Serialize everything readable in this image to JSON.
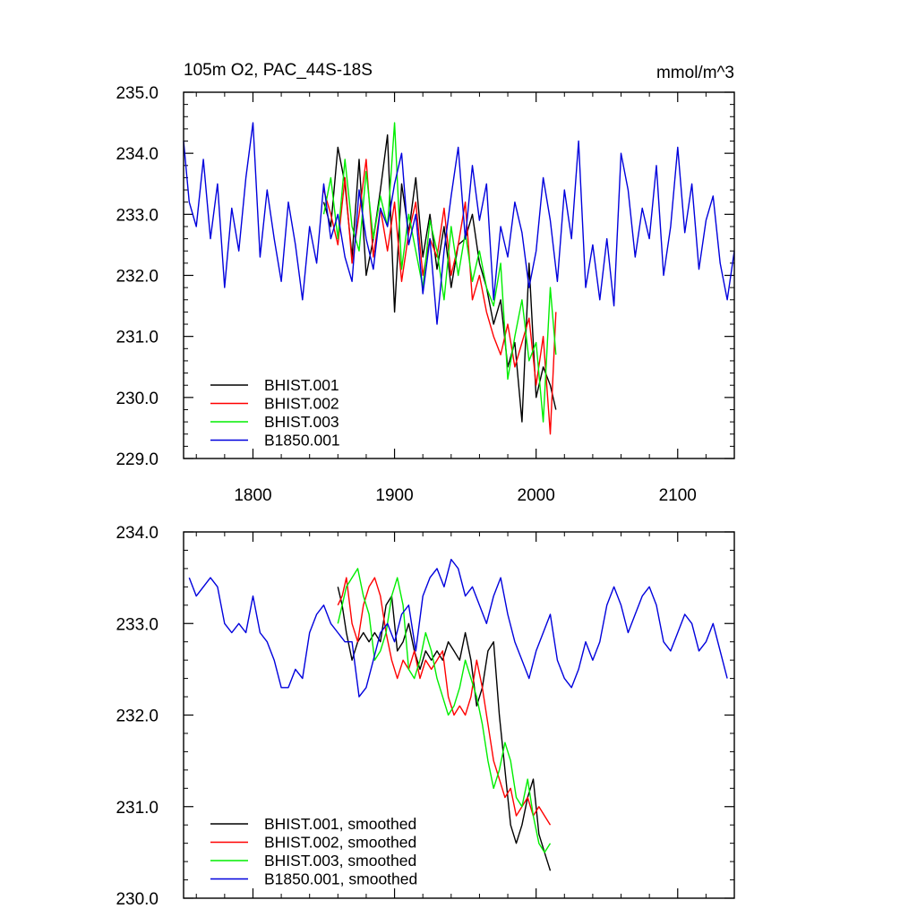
{
  "title_left": "105m O2, PAC_44S-18S",
  "title_right": "mmol/m^3",
  "colors": {
    "BHIST.001": "#000000",
    "BHIST.002": "#ff0000",
    "BHIST.003": "#00ee00",
    "B1850.001": "#0000dd"
  },
  "chart_data": [
    {
      "type": "line",
      "xlim": [
        1751,
        2140
      ],
      "ylim": [
        229.0,
        235.0
      ],
      "xticks": [
        1800,
        1900,
        2000,
        2100
      ],
      "xtick_labels": [
        "1800",
        "1900",
        "2000",
        "2100"
      ],
      "yticks": [
        229.0,
        230.0,
        231.0,
        232.0,
        233.0,
        234.0,
        235.0
      ],
      "ytick_labels": [
        "229.0",
        "230.0",
        "231.0",
        "232.0",
        "233.0",
        "234.0",
        "235.0"
      ],
      "legend_position": "bottom-left",
      "series": [
        {
          "name": "BHIST.001",
          "color": "#000000",
          "x": [
            1850,
            1855,
            1860,
            1865,
            1870,
            1875,
            1880,
            1885,
            1890,
            1895,
            1900,
            1905,
            1910,
            1915,
            1920,
            1925,
            1930,
            1935,
            1940,
            1945,
            1950,
            1955,
            1960,
            1965,
            1970,
            1975,
            1980,
            1985,
            1990,
            1995,
            2000,
            2005,
            2010,
            2014
          ],
          "y": [
            233.2,
            232.8,
            234.1,
            233.5,
            232.3,
            233.9,
            232.0,
            232.6,
            233.4,
            234.3,
            231.4,
            233.5,
            232.7,
            233.6,
            232.3,
            233.0,
            232.1,
            232.8,
            231.8,
            232.5,
            232.6,
            233.0,
            232.2,
            231.8,
            231.2,
            231.6,
            230.5,
            230.9,
            229.6,
            232.2,
            230.0,
            230.5,
            230.2,
            229.8
          ]
        },
        {
          "name": "BHIST.002",
          "color": "#ff0000",
          "x": [
            1850,
            1855,
            1860,
            1865,
            1870,
            1875,
            1880,
            1885,
            1890,
            1895,
            1900,
            1905,
            1910,
            1915,
            1920,
            1925,
            1930,
            1935,
            1940,
            1945,
            1950,
            1955,
            1960,
            1965,
            1970,
            1975,
            1980,
            1985,
            1990,
            1995,
            2000,
            2005,
            2010,
            2014
          ],
          "y": [
            233.4,
            233.0,
            232.5,
            233.6,
            232.2,
            233.0,
            233.9,
            232.3,
            233.1,
            232.4,
            233.2,
            231.9,
            232.7,
            233.2,
            232.0,
            232.6,
            232.3,
            233.1,
            232.0,
            232.5,
            233.2,
            231.6,
            232.0,
            231.4,
            231.0,
            230.7,
            231.2,
            230.5,
            230.9,
            231.3,
            230.2,
            231.0,
            229.4,
            231.4
          ]
        },
        {
          "name": "BHIST.003",
          "color": "#00ee00",
          "x": [
            1850,
            1855,
            1860,
            1865,
            1870,
            1875,
            1880,
            1885,
            1890,
            1895,
            1900,
            1905,
            1910,
            1915,
            1920,
            1925,
            1930,
            1935,
            1940,
            1945,
            1950,
            1955,
            1960,
            1965,
            1970,
            1975,
            1980,
            1985,
            1990,
            1995,
            2000,
            2005,
            2010,
            2014
          ],
          "y": [
            233.0,
            233.6,
            232.6,
            233.9,
            232.8,
            232.4,
            233.7,
            232.6,
            233.3,
            232.8,
            234.5,
            232.1,
            233.0,
            232.4,
            231.8,
            232.9,
            232.4,
            231.6,
            232.8,
            232.0,
            232.7,
            231.9,
            232.4,
            231.8,
            231.5,
            232.2,
            230.3,
            231.0,
            231.6,
            230.6,
            230.9,
            229.6,
            231.8,
            230.7
          ]
        },
        {
          "name": "B1850.001",
          "color": "#0000dd",
          "x": [
            1751,
            1755,
            1760,
            1765,
            1770,
            1775,
            1780,
            1785,
            1790,
            1795,
            1800,
            1805,
            1810,
            1815,
            1820,
            1825,
            1830,
            1835,
            1840,
            1845,
            1850,
            1855,
            1860,
            1865,
            1870,
            1875,
            1880,
            1885,
            1890,
            1895,
            1900,
            1905,
            1910,
            1915,
            1920,
            1925,
            1930,
            1935,
            1940,
            1945,
            1950,
            1955,
            1960,
            1965,
            1970,
            1975,
            1980,
            1985,
            1990,
            1995,
            2000,
            2005,
            2010,
            2015,
            2020,
            2025,
            2030,
            2035,
            2040,
            2045,
            2050,
            2055,
            2060,
            2065,
            2070,
            2075,
            2080,
            2085,
            2090,
            2095,
            2100,
            2105,
            2110,
            2115,
            2120,
            2125,
            2130,
            2135,
            2140
          ],
          "y": [
            234.2,
            233.2,
            232.8,
            233.9,
            232.6,
            233.5,
            231.8,
            233.1,
            232.4,
            233.6,
            234.5,
            232.3,
            233.4,
            232.6,
            231.9,
            233.2,
            232.5,
            231.6,
            232.8,
            232.2,
            233.5,
            232.6,
            233.0,
            232.3,
            231.9,
            233.4,
            232.6,
            232.1,
            233.1,
            232.8,
            233.5,
            234.0,
            232.5,
            233.0,
            231.7,
            232.6,
            231.2,
            232.4,
            233.3,
            234.1,
            232.6,
            233.8,
            232.9,
            233.5,
            231.6,
            232.8,
            232.3,
            233.2,
            232.7,
            231.8,
            232.4,
            233.6,
            232.9,
            231.9,
            233.4,
            232.6,
            234.2,
            231.8,
            232.5,
            231.6,
            232.6,
            231.5,
            234.0,
            233.4,
            232.3,
            233.1,
            232.6,
            233.8,
            232.0,
            232.8,
            234.1,
            232.7,
            233.5,
            232.1,
            232.9,
            233.3,
            232.2,
            231.6,
            232.4
          ]
        }
      ]
    },
    {
      "type": "line",
      "xlim": [
        1751,
        2140
      ],
      "ylim": [
        230.0,
        234.0
      ],
      "xticks": [
        1800,
        1900,
        2000,
        2100
      ],
      "xtick_labels": [],
      "yticks": [
        230.0,
        231.0,
        232.0,
        233.0,
        234.0
      ],
      "ytick_labels": [
        "230.0",
        "231.0",
        "232.0",
        "233.0",
        "234.0"
      ],
      "legend_position": "bottom-left",
      "series": [
        {
          "name": "BHIST.001, smoothed",
          "color": "#000000",
          "x": [
            1860,
            1863,
            1866,
            1870,
            1874,
            1878,
            1882,
            1886,
            1890,
            1894,
            1898,
            1902,
            1906,
            1910,
            1914,
            1918,
            1922,
            1926,
            1930,
            1934,
            1938,
            1942,
            1946,
            1950,
            1954,
            1958,
            1962,
            1966,
            1970,
            1974,
            1978,
            1982,
            1986,
            1990,
            1994,
            1998,
            2002,
            2006,
            2010
          ],
          "y": [
            233.4,
            233.2,
            232.9,
            232.6,
            232.8,
            232.9,
            232.8,
            232.9,
            232.8,
            233.2,
            233.3,
            232.7,
            232.8,
            233.0,
            232.7,
            232.5,
            232.7,
            232.6,
            232.7,
            232.6,
            232.8,
            232.7,
            232.6,
            232.9,
            232.6,
            232.1,
            232.3,
            232.7,
            232.8,
            232.0,
            231.4,
            230.8,
            230.6,
            230.8,
            231.1,
            231.3,
            230.7,
            230.5,
            230.3
          ]
        },
        {
          "name": "BHIST.002, smoothed",
          "color": "#ff0000",
          "x": [
            1860,
            1863,
            1866,
            1870,
            1874,
            1878,
            1882,
            1886,
            1890,
            1894,
            1898,
            1902,
            1906,
            1910,
            1914,
            1918,
            1922,
            1926,
            1930,
            1934,
            1938,
            1942,
            1946,
            1950,
            1954,
            1958,
            1962,
            1966,
            1970,
            1974,
            1978,
            1982,
            1986,
            1990,
            1994,
            1998,
            2002,
            2006,
            2010
          ],
          "y": [
            233.2,
            233.3,
            233.5,
            233.0,
            232.8,
            233.2,
            233.4,
            233.5,
            233.3,
            232.9,
            232.6,
            232.4,
            232.6,
            232.5,
            232.7,
            232.4,
            232.6,
            232.5,
            232.6,
            232.7,
            232.2,
            232.0,
            232.1,
            232.0,
            232.2,
            232.6,
            232.3,
            231.9,
            231.5,
            231.3,
            231.1,
            231.2,
            230.9,
            231.0,
            231.1,
            230.9,
            231.0,
            230.9,
            230.8
          ]
        },
        {
          "name": "BHIST.003, smoothed",
          "color": "#00ee00",
          "x": [
            1860,
            1863,
            1866,
            1870,
            1874,
            1878,
            1882,
            1886,
            1890,
            1894,
            1898,
            1902,
            1906,
            1910,
            1914,
            1918,
            1922,
            1926,
            1930,
            1934,
            1938,
            1942,
            1946,
            1950,
            1954,
            1958,
            1962,
            1966,
            1970,
            1974,
            1978,
            1982,
            1986,
            1990,
            1994,
            1998,
            2002,
            2006,
            2010
          ],
          "y": [
            233.0,
            233.2,
            233.4,
            233.5,
            233.6,
            233.3,
            233.1,
            232.6,
            232.7,
            232.9,
            233.3,
            233.5,
            233.2,
            232.5,
            232.4,
            232.6,
            232.9,
            232.7,
            232.4,
            232.2,
            232.0,
            232.1,
            232.3,
            232.6,
            232.4,
            232.2,
            231.9,
            231.5,
            231.2,
            231.4,
            231.7,
            231.5,
            231.1,
            231.0,
            231.3,
            230.9,
            230.6,
            230.5,
            230.6
          ]
        },
        {
          "name": "B1850.001, smoothed",
          "color": "#0000dd",
          "x": [
            1755,
            1760,
            1765,
            1770,
            1775,
            1780,
            1785,
            1790,
            1795,
            1800,
            1805,
            1810,
            1815,
            1820,
            1825,
            1830,
            1835,
            1840,
            1845,
            1850,
            1855,
            1860,
            1865,
            1870,
            1875,
            1880,
            1885,
            1890,
            1895,
            1900,
            1905,
            1910,
            1915,
            1920,
            1925,
            1930,
            1935,
            1940,
            1945,
            1950,
            1955,
            1960,
            1965,
            1970,
            1975,
            1980,
            1985,
            1990,
            1995,
            2000,
            2005,
            2010,
            2015,
            2020,
            2025,
            2030,
            2035,
            2040,
            2045,
            2050,
            2055,
            2060,
            2065,
            2070,
            2075,
            2080,
            2085,
            2090,
            2095,
            2100,
            2105,
            2110,
            2115,
            2120,
            2125,
            2130,
            2135
          ],
          "y": [
            233.5,
            233.3,
            233.4,
            233.5,
            233.4,
            233.0,
            232.9,
            233.0,
            232.9,
            233.3,
            232.9,
            232.8,
            232.6,
            232.3,
            232.3,
            232.5,
            232.4,
            232.9,
            233.1,
            233.2,
            233.0,
            232.9,
            232.8,
            232.8,
            232.2,
            232.3,
            232.6,
            232.9,
            233.0,
            232.8,
            233.1,
            233.2,
            232.7,
            233.3,
            233.5,
            233.6,
            233.4,
            233.7,
            233.6,
            233.3,
            233.4,
            233.2,
            233.0,
            233.3,
            233.5,
            233.1,
            232.8,
            232.6,
            232.4,
            232.7,
            232.9,
            233.1,
            232.6,
            232.4,
            232.3,
            232.5,
            232.8,
            232.6,
            232.8,
            233.2,
            233.4,
            233.2,
            232.9,
            233.1,
            233.3,
            233.4,
            233.2,
            232.8,
            232.7,
            232.9,
            233.1,
            233.0,
            232.7,
            232.8,
            233.0,
            232.7,
            232.4
          ]
        }
      ]
    }
  ]
}
